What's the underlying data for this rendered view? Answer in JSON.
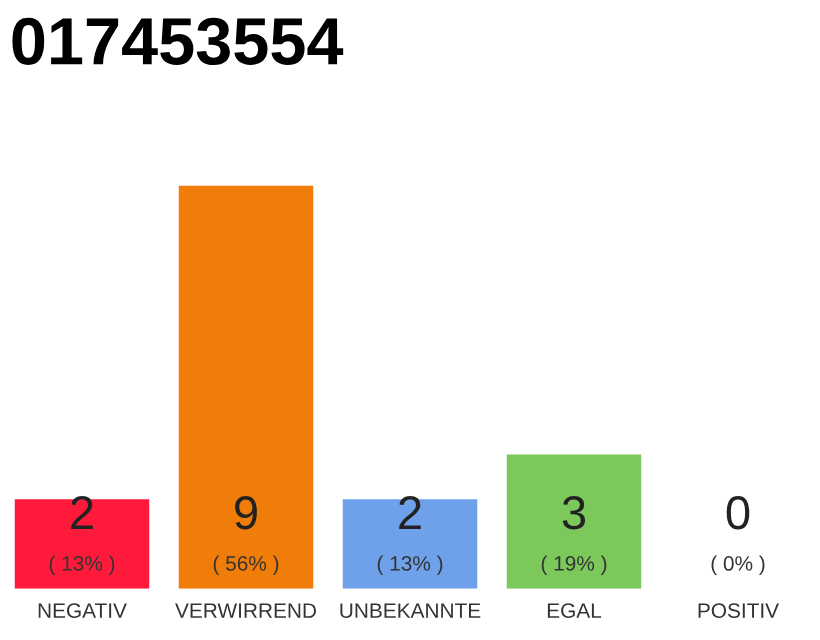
{
  "chart_data": {
    "type": "bar",
    "title": "017453554",
    "categories": [
      "NEGATIV",
      "VERWIRREND",
      "UNBEKANNTE",
      "EGAL",
      "POSITIV"
    ],
    "values": [
      2,
      9,
      2,
      3,
      0
    ],
    "colors": [
      "#ff1a3c",
      "#f07d0a",
      "#6fa0ea",
      "#7dc85a",
      "#d0d0d0"
    ],
    "value_labels": [
      "2\n( 13% )",
      "9\n( 56% )",
      "2\n( 13% )",
      "3\n( 19% )",
      "0\n( 0% )"
    ],
    "grid": false,
    "legend": false
  }
}
